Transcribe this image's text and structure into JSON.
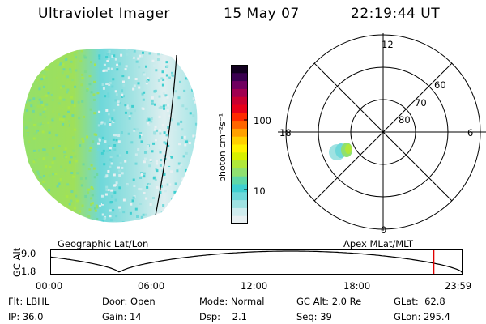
{
  "header": {
    "instrument": "Ultraviolet Imager",
    "date": "15 May 07",
    "time": "22:19:44 UT"
  },
  "colors": {
    "colorbar": [
      "#e8f0f2",
      "#cfecee",
      "#9fe2e2",
      "#6fd8da",
      "#3fcfd0",
      "#5ed7a8",
      "#8fe070",
      "#b0e83a",
      "#d8f000",
      "#fff200",
      "#ffd000",
      "#ffa000",
      "#ff6600",
      "#ff2a00",
      "#e6001a",
      "#c80030",
      "#a00050",
      "#700060",
      "#3a0050",
      "#120020"
    ]
  },
  "colorbar": {
    "unit_label": "photon cm⁻²s⁻¹",
    "ticks": [
      {
        "label": "100",
        "value": 100
      },
      {
        "label": "10",
        "value": 10
      }
    ]
  },
  "polar": {
    "mlt_labels": {
      "top": "12",
      "bottom": "0",
      "left": "18",
      "right": "6"
    },
    "lat_labels": [
      {
        "label": "60",
        "lat": 60
      },
      {
        "label": "70",
        "lat": 70
      },
      {
        "label": "80",
        "lat": 80
      }
    ]
  },
  "plot_labels": {
    "geographic": "Geographic Lat/Lon",
    "apex": "Apex MLat/MLT"
  },
  "altitude_plot": {
    "axis_label": "GC Alt",
    "y_ticks": [
      "9.0",
      "1.8"
    ],
    "x_ticks": [
      "00:00",
      "06:00",
      "12:00",
      "18:00",
      "23:59"
    ],
    "current_marker_hour": 22.33
  },
  "info": {
    "flt_label": "Flt:",
    "flt_value": "LBHL",
    "ip_label": "IP:",
    "ip_value": "36.0",
    "door_label": "Door:",
    "door_value": "Open",
    "gain_label": "Gain:",
    "gain_value": "14",
    "mode_label": "Mode:",
    "mode_value": "Normal",
    "dsp_label": "Dsp:",
    "dsp_value": "2.1",
    "gcalt_label": "GC Alt:",
    "gcalt_value": "2.0 Re",
    "seq_label": "Seq:",
    "seq_value": "39",
    "glat_label": "GLat:",
    "glat_value": "62.8",
    "glon_label": "GLon:",
    "glon_value": "295.4"
  }
}
